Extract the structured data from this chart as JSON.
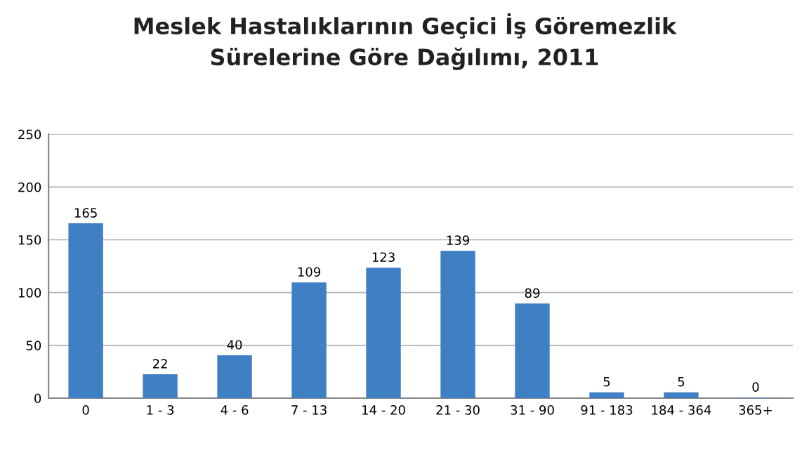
{
  "chart_data": {
    "type": "bar",
    "title": "Meslek Hastalıklarının Geçici İş Göremezlik\nSürelerine Göre Dağılımı, 2011",
    "categories": [
      "0",
      "1 - 3",
      "4 - 6",
      "7 - 13",
      "14 - 20",
      "21 - 30",
      "31 - 90",
      "91 - 183",
      "184 - 364",
      "365+"
    ],
    "values": [
      165,
      22,
      40,
      109,
      123,
      139,
      89,
      5,
      5,
      0
    ],
    "color": "#3f7fc4",
    "ylim": [
      0,
      250
    ],
    "yticks": [
      0,
      50,
      100,
      150,
      200,
      250
    ],
    "grid": "y",
    "data_labels": true,
    "legend": false
  }
}
